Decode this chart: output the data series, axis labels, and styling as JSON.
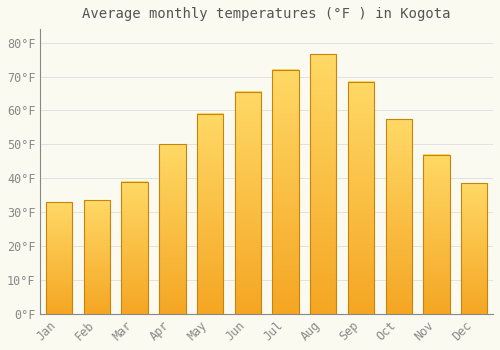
{
  "title": "Average monthly temperatures (°F ) in Kogota",
  "months": [
    "Jan",
    "Feb",
    "Mar",
    "Apr",
    "May",
    "Jun",
    "Jul",
    "Aug",
    "Sep",
    "Oct",
    "Nov",
    "Dec"
  ],
  "values": [
    33,
    33.5,
    39,
    50,
    59,
    65.5,
    72,
    76.5,
    68.5,
    57.5,
    47,
    38.5
  ],
  "bar_color_top": "#FFD966",
  "bar_color_bottom": "#F5A623",
  "bar_edge_color": "#C8840A",
  "ylim": [
    0,
    84
  ],
  "yticks": [
    0,
    10,
    20,
    30,
    40,
    50,
    60,
    70,
    80
  ],
  "ylabel_suffix": "°F",
  "background_color": "#FAFAF0",
  "grid_color": "#DDDDDD",
  "title_fontsize": 10,
  "tick_fontsize": 8.5,
  "font_family": "monospace"
}
